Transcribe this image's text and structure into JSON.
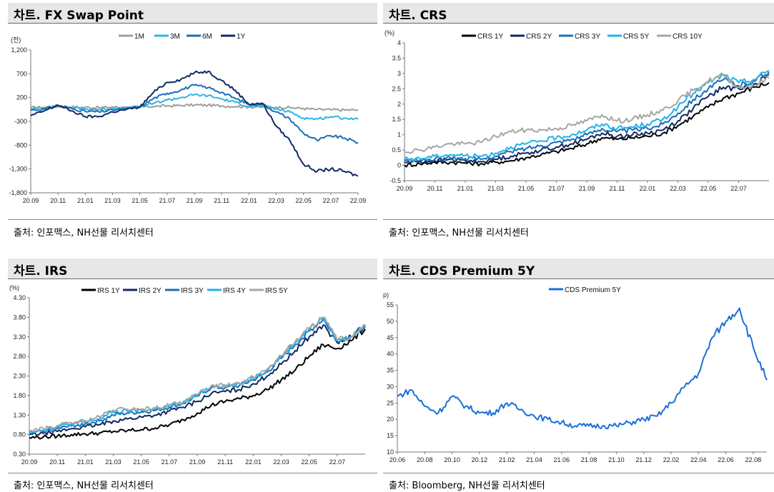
{
  "panels": {
    "fx": {
      "title": "차트. FX Swap Point",
      "source": "출처: 인포맥스, NH선물 리서치센터"
    },
    "crs": {
      "title": "차트. CRS",
      "source": "출처: 인포맥스, NH선물 리서치센터"
    },
    "irs": {
      "title": "차트. IRS",
      "source": "출처: 인포맥스, NH선물 리서치센터"
    },
    "cds": {
      "title": "차트. CDS Premium 5Y",
      "source": "출처: Bloomberg, NH선물 리서치센터"
    }
  },
  "chart_data": [
    {
      "id": "fx",
      "type": "line",
      "unit": "(전)",
      "x": [
        "20.09",
        "20.10",
        "20.11",
        "20.12",
        "21.01",
        "21.02",
        "21.03",
        "21.04",
        "21.05",
        "21.06",
        "21.07",
        "21.08",
        "21.09",
        "21.10",
        "21.11",
        "21.12",
        "22.01",
        "22.02",
        "22.03",
        "22.04",
        "22.05",
        "22.06",
        "22.07",
        "22.08",
        "22.09"
      ],
      "xticks": [
        "20.09",
        "20.11",
        "21.01",
        "21.03",
        "21.05",
        "21.07",
        "21.09",
        "21.11",
        "22.01",
        "22.03",
        "22.05",
        "22.07",
        "22.09"
      ],
      "ylim": [
        -1800,
        1200
      ],
      "yticks": [
        1200,
        700,
        200,
        -300,
        -800,
        -1300,
        -1800
      ],
      "ytick_labels": [
        "1,200",
        "700",
        "200",
        "-300",
        "-800",
        "-1,300",
        "-1,800"
      ],
      "colors": [
        "#9e9e9e",
        "#2fb4e6",
        "#1a6fb5",
        "#102a64"
      ],
      "series": [
        {
          "name": "1M",
          "values": [
            -10,
            -5,
            15,
            0,
            -5,
            -10,
            0,
            -5,
            0,
            15,
            25,
            35,
            45,
            40,
            25,
            15,
            5,
            0,
            0,
            -10,
            -30,
            -50,
            -55,
            -60,
            -60
          ]
        },
        {
          "name": "3M",
          "values": [
            -30,
            -20,
            30,
            -10,
            -40,
            -50,
            -30,
            -20,
            0,
            80,
            150,
            200,
            260,
            240,
            170,
            100,
            20,
            20,
            -40,
            -100,
            -230,
            -250,
            -200,
            -230,
            -250
          ]
        },
        {
          "name": "6M",
          "values": [
            -60,
            -40,
            40,
            -30,
            -90,
            -100,
            -60,
            -40,
            0,
            180,
            290,
            360,
            460,
            410,
            310,
            180,
            60,
            60,
            -100,
            -250,
            -550,
            -700,
            -600,
            -650,
            -750
          ]
        },
        {
          "name": "1Y",
          "values": [
            -180,
            -80,
            40,
            -80,
            -200,
            -200,
            -100,
            -50,
            0,
            310,
            520,
            580,
            720,
            750,
            560,
            350,
            60,
            80,
            -400,
            -700,
            -1200,
            -1350,
            -1300,
            -1350,
            -1450
          ]
        }
      ]
    },
    {
      "id": "crs",
      "type": "line",
      "unit": "(%)",
      "x": [
        "20.09",
        "20.10",
        "20.11",
        "20.12",
        "21.01",
        "21.02",
        "21.03",
        "21.04",
        "21.05",
        "21.06",
        "21.07",
        "21.08",
        "21.09",
        "21.10",
        "21.11",
        "21.12",
        "22.01",
        "22.02",
        "22.03",
        "22.04",
        "22.05",
        "22.06",
        "22.07",
        "22.08",
        "22.09"
      ],
      "xticks": [
        "20.09",
        "20.11",
        "21.01",
        "21.03",
        "21.05",
        "21.07",
        "21.09",
        "21.11",
        "22.01",
        "22.03",
        "22.05",
        "22.07"
      ],
      "ylim": [
        -0.5,
        4
      ],
      "yticks": [
        4,
        3.5,
        3,
        2.5,
        2,
        1.5,
        1,
        0.5,
        0,
        -0.5
      ],
      "ytick_labels": [
        "4",
        "3.5",
        "3",
        "2.5",
        "2",
        "1.5",
        "1",
        "0.5",
        "0",
        "-0.5"
      ],
      "colors": [
        "#000000",
        "#0f2a5e",
        "#1a6fb5",
        "#22b2e8",
        "#a6a6a6"
      ],
      "series": [
        {
          "name": "CRS 1Y",
          "values": [
            0.0,
            0.05,
            0.1,
            0.1,
            0.08,
            0.05,
            0.1,
            0.15,
            0.25,
            0.35,
            0.45,
            0.55,
            0.7,
            0.9,
            0.85,
            0.9,
            0.95,
            1.05,
            1.3,
            1.6,
            1.9,
            2.2,
            2.35,
            2.55,
            2.7
          ]
        },
        {
          "name": "CRS 2Y",
          "values": [
            0.1,
            0.12,
            0.15,
            0.2,
            0.15,
            0.12,
            0.2,
            0.3,
            0.4,
            0.5,
            0.6,
            0.7,
            0.85,
            1.05,
            0.95,
            1.0,
            1.05,
            1.15,
            1.45,
            1.85,
            2.25,
            2.55,
            2.5,
            2.65,
            2.95
          ]
        },
        {
          "name": "CRS 3Y",
          "values": [
            0.15,
            0.17,
            0.2,
            0.25,
            0.22,
            0.2,
            0.3,
            0.45,
            0.55,
            0.65,
            0.75,
            0.85,
            1.0,
            1.2,
            1.1,
            1.15,
            1.2,
            1.35,
            1.7,
            2.15,
            2.5,
            2.8,
            2.6,
            2.75,
            3.05
          ]
        },
        {
          "name": "CRS 5Y",
          "values": [
            0.2,
            0.22,
            0.3,
            0.35,
            0.32,
            0.3,
            0.4,
            0.6,
            0.7,
            0.8,
            0.9,
            1.0,
            1.15,
            1.35,
            1.2,
            1.25,
            1.35,
            1.5,
            1.9,
            2.35,
            2.7,
            2.95,
            2.7,
            2.8,
            3.1
          ]
        },
        {
          "name": "CRS 10Y",
          "values": [
            0.45,
            0.5,
            0.6,
            0.7,
            0.7,
            0.75,
            0.95,
            1.1,
            1.15,
            1.15,
            1.2,
            1.3,
            1.45,
            1.65,
            1.45,
            1.5,
            1.65,
            1.8,
            2.1,
            2.45,
            2.75,
            2.95,
            2.55,
            2.6,
            2.85
          ]
        }
      ]
    },
    {
      "id": "irs",
      "type": "line",
      "unit": "(%)",
      "x": [
        "20.09",
        "20.10",
        "20.11",
        "20.12",
        "21.01",
        "21.02",
        "21.03",
        "21.04",
        "21.05",
        "21.06",
        "21.07",
        "21.08",
        "21.09",
        "21.10",
        "21.11",
        "21.12",
        "22.01",
        "22.02",
        "22.03",
        "22.04",
        "22.05",
        "22.06",
        "22.07",
        "22.08",
        "22.09"
      ],
      "xticks": [
        "20.09",
        "20.11",
        "21.01",
        "21.03",
        "21.05",
        "21.07",
        "21.09",
        "21.11",
        "22.01",
        "22.03",
        "22.05",
        "22.07"
      ],
      "ylim": [
        0.3,
        4.3
      ],
      "yticks": [
        4.3,
        3.8,
        3.3,
        2.8,
        2.3,
        1.8,
        1.3,
        0.8,
        0.3
      ],
      "ytick_labels": [
        "4.30",
        "3.80",
        "3.30",
        "2.80",
        "2.30",
        "1.80",
        "1.30",
        "0.80",
        "0.30"
      ],
      "colors": [
        "#000000",
        "#0f2a5e",
        "#1a6fb5",
        "#22b2e8",
        "#a6a6a6"
      ],
      "series": [
        {
          "name": "IRS 1Y",
          "values": [
            0.72,
            0.74,
            0.76,
            0.8,
            0.82,
            0.84,
            0.88,
            0.9,
            0.93,
            0.97,
            1.05,
            1.18,
            1.35,
            1.55,
            1.65,
            1.72,
            1.8,
            1.95,
            2.2,
            2.45,
            2.8,
            3.1,
            3.0,
            3.2,
            3.5
          ]
        },
        {
          "name": "IRS 2Y",
          "values": [
            0.8,
            0.83,
            0.88,
            0.95,
            1.0,
            1.05,
            1.15,
            1.2,
            1.25,
            1.3,
            1.4,
            1.5,
            1.65,
            1.85,
            1.9,
            1.95,
            2.1,
            2.3,
            2.6,
            2.95,
            3.3,
            3.6,
            3.15,
            3.3,
            3.55
          ]
        },
        {
          "name": "IRS 3Y",
          "values": [
            0.85,
            0.88,
            0.95,
            1.02,
            1.08,
            1.15,
            1.3,
            1.35,
            1.38,
            1.42,
            1.5,
            1.6,
            1.78,
            2.0,
            2.0,
            2.05,
            2.2,
            2.4,
            2.75,
            3.1,
            3.45,
            3.75,
            3.2,
            3.3,
            3.6
          ]
        },
        {
          "name": "IRS 4Y",
          "values": [
            0.88,
            0.92,
            1.0,
            1.07,
            1.12,
            1.2,
            1.38,
            1.4,
            1.42,
            1.45,
            1.52,
            1.62,
            1.8,
            2.05,
            2.05,
            2.1,
            2.25,
            2.45,
            2.8,
            3.15,
            3.5,
            3.8,
            3.2,
            3.3,
            3.6
          ]
        },
        {
          "name": "IRS 5Y",
          "values": [
            0.9,
            0.95,
            1.03,
            1.1,
            1.15,
            1.25,
            1.43,
            1.45,
            1.45,
            1.47,
            1.55,
            1.65,
            1.82,
            2.05,
            2.07,
            2.12,
            2.28,
            2.47,
            2.82,
            3.18,
            3.52,
            3.8,
            3.22,
            3.3,
            3.6
          ]
        }
      ]
    },
    {
      "id": "cds",
      "type": "line",
      "unit": "(bp)",
      "x": [
        "20.06",
        "20.07",
        "20.08",
        "20.09",
        "20.10",
        "20.11",
        "20.12",
        "21.01",
        "21.02",
        "21.03",
        "21.04",
        "21.05",
        "21.06",
        "21.07",
        "21.08",
        "21.09",
        "21.10",
        "21.11",
        "21.12",
        "22.01",
        "22.02",
        "22.03",
        "22.04",
        "22.05",
        "22.06",
        "22.07",
        "22.08",
        "22.09"
      ],
      "xticks": [
        "20.06",
        "20.08",
        "20.10",
        "20.12",
        "21.02",
        "21.04",
        "21.06",
        "21.08",
        "21.10",
        "21.12",
        "22.02",
        "22.04",
        "22.06",
        "22.08"
      ],
      "ylim": [
        10,
        55
      ],
      "yticks": [
        55,
        50,
        45,
        40,
        35,
        30,
        25,
        20,
        15,
        10
      ],
      "ytick_labels": [
        "55",
        "50",
        "45",
        "40",
        "35",
        "30",
        "25",
        "20",
        "15",
        "10"
      ],
      "colors": [
        "#1b6fd8"
      ],
      "series": [
        {
          "name": "CDS Premium 5Y",
          "values": [
            27,
            29,
            24,
            22,
            27,
            24,
            22,
            22,
            25,
            23,
            21,
            20,
            19,
            18,
            18,
            18,
            18,
            19,
            20,
            21,
            25,
            30,
            34,
            45,
            50,
            54,
            42,
            32
          ]
        }
      ]
    }
  ]
}
